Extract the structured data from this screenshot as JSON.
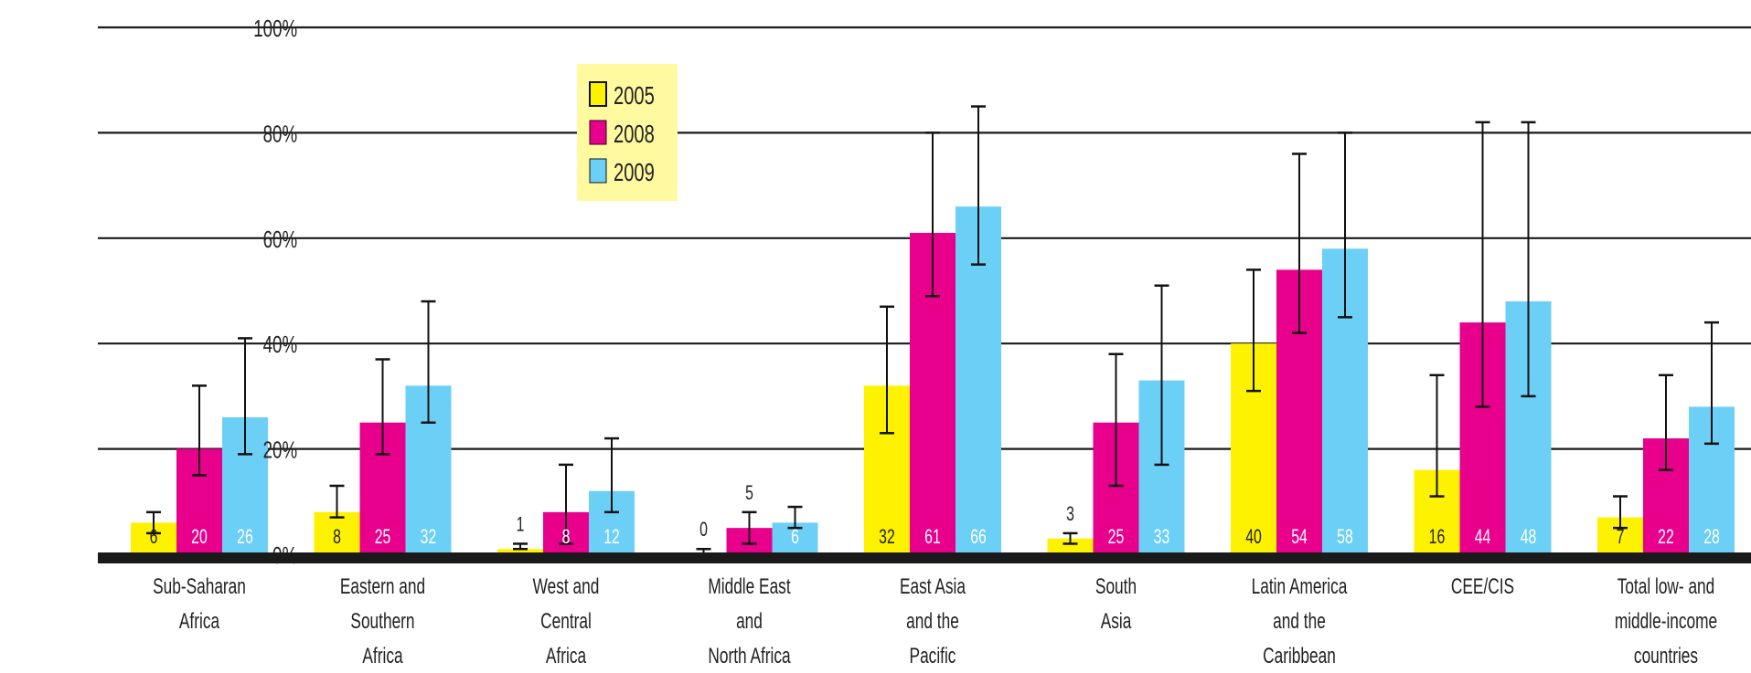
{
  "chart_data": {
    "type": "bar",
    "ylim": [
      0,
      100
    ],
    "yticks": [
      "0%",
      "20%",
      "40%",
      "60%",
      "80%",
      "100%"
    ],
    "yticks_values": [
      0,
      20,
      40,
      60,
      80,
      100
    ],
    "grid": true,
    "legend_position": "top-left",
    "categories": [
      [
        "Sub-Saharan",
        "Africa"
      ],
      [
        "Eastern and",
        "Southern",
        "Africa"
      ],
      [
        "West and",
        "Central",
        "Africa"
      ],
      [
        "Middle East",
        "and",
        "North Africa"
      ],
      [
        "East Asia",
        "and the",
        "Pacific"
      ],
      [
        "South",
        "Asia"
      ],
      [
        "Latin America",
        "and the",
        "Caribbean"
      ],
      [
        "CEE/CIS"
      ],
      [
        "Total low- and",
        "middle-income",
        "countries"
      ]
    ],
    "series": [
      {
        "name": "2005",
        "color": "#fff200",
        "values": [
          6,
          8,
          1,
          0,
          32,
          3,
          40,
          16,
          7
        ],
        "labels": [
          "6",
          "8",
          "1",
          "0",
          "32",
          "3",
          "40",
          "16",
          "7"
        ],
        "error_low": [
          4,
          7,
          1,
          0,
          23,
          2,
          31,
          11,
          5
        ],
        "error_high": [
          8,
          13,
          2,
          1,
          47,
          4,
          54,
          34,
          11
        ]
      },
      {
        "name": "2008",
        "color": "#e8008c",
        "values": [
          20,
          25,
          8,
          5,
          61,
          25,
          54,
          44,
          22
        ],
        "labels": [
          "20",
          "25",
          "8",
          "5",
          "61",
          "25",
          "54",
          "44",
          "22"
        ],
        "error_low": [
          15,
          19,
          2,
          2,
          49,
          13,
          42,
          28,
          16
        ],
        "error_high": [
          32,
          37,
          17,
          8,
          80,
          38,
          76,
          82,
          34
        ]
      },
      {
        "name": "2009",
        "color": "#6ccff6",
        "values": [
          26,
          32,
          12,
          6,
          66,
          33,
          58,
          48,
          28
        ],
        "labels": [
          "26",
          "32",
          "12",
          "6",
          "66",
          "33",
          "58",
          "48",
          "28"
        ],
        "error_low": [
          19,
          25,
          8,
          5,
          55,
          17,
          45,
          30,
          21
        ],
        "error_high": [
          41,
          48,
          22,
          9,
          85,
          51,
          80,
          82,
          44
        ]
      }
    ],
    "legend_bg": "#fff9a0",
    "axis_color": "#1a1a1a"
  }
}
